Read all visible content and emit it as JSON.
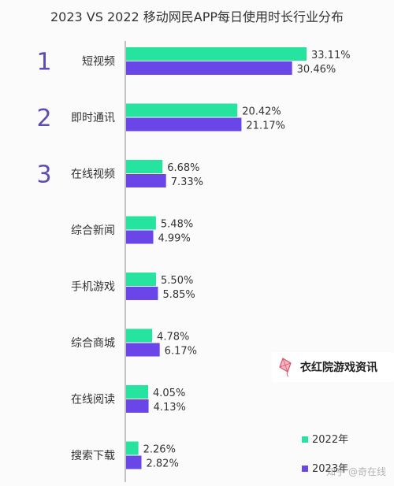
{
  "chart_data": {
    "type": "bar",
    "orientation": "horizontal",
    "title": "2023 VS 2022 移动网民APP每日使用时长行业分布",
    "categories": [
      "短视频",
      "即时通讯",
      "在线视频",
      "综合新闻",
      "手机游戏",
      "综合商城",
      "在线阅读",
      "搜索下载"
    ],
    "ranks": [
      "1",
      "2",
      "3"
    ],
    "series": [
      {
        "name": "2022年",
        "color": "#27e3a0",
        "values": [
          33.11,
          20.42,
          6.68,
          5.48,
          5.5,
          4.78,
          4.05,
          2.26
        ]
      },
      {
        "name": "2023年",
        "color": "#6a46e8",
        "values": [
          30.46,
          21.17,
          7.33,
          4.99,
          5.85,
          6.17,
          4.13,
          2.82
        ]
      }
    ],
    "value_suffix": "%",
    "legend_position": "bottom-right",
    "grid": false
  },
  "watermark": {
    "text": "衣红院游戏资讯",
    "icon": "kite-icon"
  },
  "footer_credit": "知乎 @奇在线",
  "colors": {
    "rank": "#5f4bb6",
    "axis": "#8a8a8a",
    "label": "#333333"
  }
}
